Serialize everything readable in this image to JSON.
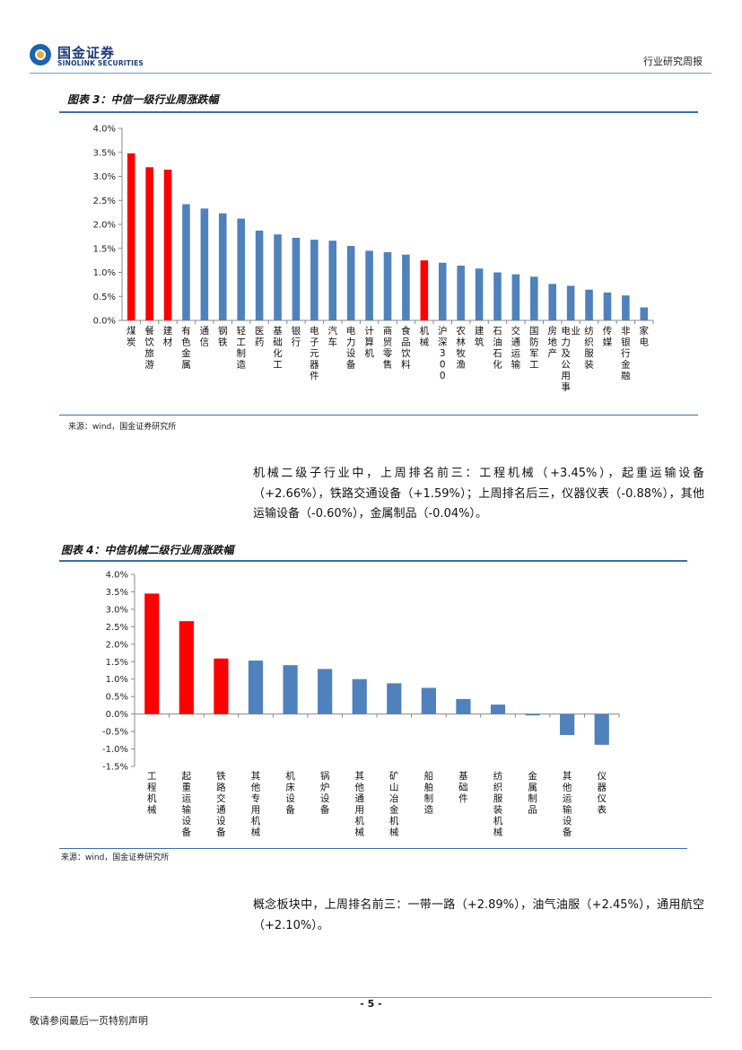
{
  "header": {
    "logo_cn": "国金证券",
    "logo_en": "SINOLINK SECURITIES",
    "report_type": "行业研究周报"
  },
  "figure3": {
    "title": "图表 3：中信一级行业周涨跌幅",
    "source": "来源：wind，国金证券研究所"
  },
  "paragraph1": "机械二级子行业中，上周排名前三：工程机械（+3.45%），起重运输设备（+2.66%），铁路交通设备（+1.59%）；上周排名后三，仪器仪表（-0.88%），其他运输设备（-0.60%），金属制品（-0.04%）。",
  "figure4": {
    "title": "图表 4：中信机械二级行业周涨跌幅",
    "source": "来源：wind，国金证券研究所"
  },
  "paragraph2": "概念板块中，上周排名前三：一带一路（+2.89%），油气油服（+2.45%），通用航空（+2.10%）。",
  "footer": {
    "page_number": "- 5 -",
    "note": "敬请参阅最后一页特别声明"
  },
  "colors": {
    "highlight": "#ff0000",
    "default": "#4f81bd",
    "rule": "#3b6fa6"
  },
  "chart_data": [
    {
      "type": "bar",
      "categories": [
        "煤炭",
        "餐饮旅游",
        "建材",
        "有色金属",
        "通信",
        "钢铁",
        "轻工制造",
        "医药",
        "基础化工",
        "银行",
        "电子元器件",
        "汽车",
        "电力设备",
        "计算机",
        "商贸零售",
        "食品饮料",
        "机械",
        "沪深300",
        "农林牧渔",
        "建筑",
        "石油石化",
        "交通运输",
        "国防军工",
        "房地产",
        "电力及公用事业",
        "纺织服装",
        "传媒",
        "非银行金融",
        "家电"
      ],
      "values": [
        3.48,
        3.19,
        3.14,
        2.42,
        2.33,
        2.23,
        2.12,
        1.87,
        1.79,
        1.72,
        1.68,
        1.66,
        1.55,
        1.45,
        1.42,
        1.37,
        1.25,
        1.2,
        1.14,
        1.08,
        1.0,
        0.96,
        0.91,
        0.76,
        0.72,
        0.64,
        0.58,
        0.52,
        0.27
      ],
      "highlight": [
        "煤炭",
        "餐饮旅游",
        "建材",
        "机械"
      ],
      "ylim": [
        0,
        4.0
      ],
      "yticks": [
        "0.0%",
        "0.5%",
        "1.0%",
        "1.5%",
        "2.0%",
        "2.5%",
        "3.0%",
        "3.5%",
        "4.0%"
      ],
      "unit": "%",
      "grid": false
    },
    {
      "type": "bar",
      "categories": [
        "工程机械",
        "起重运输设备",
        "铁路交通设备",
        "其他专用机械",
        "机床设备",
        "锅炉设备",
        "其他通用机械",
        "矿山冶金机械",
        "船舶制造",
        "基础件",
        "纺织服装机械",
        "金属制品",
        "其他运输设备",
        "仪器仪表"
      ],
      "values": [
        3.45,
        2.66,
        1.59,
        1.53,
        1.4,
        1.29,
        1.0,
        0.88,
        0.75,
        0.43,
        0.27,
        -0.04,
        -0.6,
        -0.88
      ],
      "highlight": [
        "工程机械",
        "起重运输设备",
        "铁路交通设备"
      ],
      "ylim": [
        -1.5,
        4.0
      ],
      "yticks": [
        "-1.5%",
        "-1.0%",
        "-0.5%",
        "0.0%",
        "0.5%",
        "1.0%",
        "1.5%",
        "2.0%",
        "2.5%",
        "3.0%",
        "3.5%",
        "4.0%"
      ],
      "unit": "%",
      "grid": false
    }
  ]
}
